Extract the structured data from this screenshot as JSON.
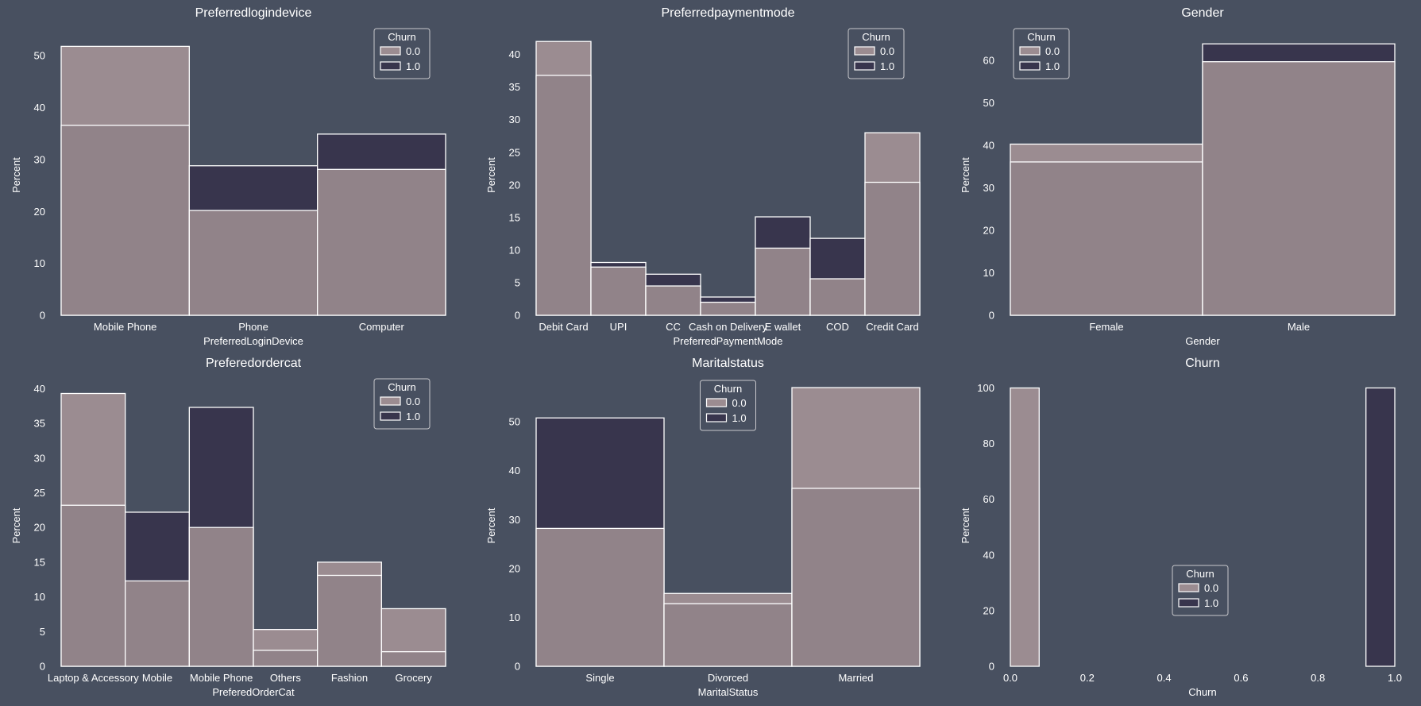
{
  "colors": {
    "background": "#485060",
    "churn0_fill": "#9b8c91",
    "churn1_fill": "#38354d",
    "overlap_fill": "#918389",
    "edge": "#ffffff"
  },
  "chart_data": [
    {
      "type": "bar",
      "title": "Preferredlogindevice",
      "xlabel": "PreferredLoginDevice",
      "ylabel": "Percent",
      "categories": [
        "Mobile Phone",
        "Phone",
        "Computer"
      ],
      "ylim": [
        0,
        54
      ],
      "yticks": [
        "0",
        "10",
        "20",
        "30",
        "40",
        "50"
      ],
      "legend_title": "Churn",
      "legend_position": "top-right",
      "series": [
        {
          "name": "0.0",
          "values": [
            51.8,
            20.2,
            28.1
          ]
        },
        {
          "name": "1.0",
          "values": [
            36.6,
            28.8,
            34.9
          ]
        }
      ]
    },
    {
      "type": "bar",
      "title": "Preferredpaymentmode",
      "xlabel": "PreferredPaymentMode",
      "ylabel": "Percent",
      "categories": [
        "Debit Card",
        "UPI",
        "CC",
        "Cash on Delivery",
        "E wallet",
        "COD",
        "Credit Card"
      ],
      "ylim": [
        0,
        43
      ],
      "yticks": [
        "0",
        "5",
        "10",
        "15",
        "20",
        "25",
        "30",
        "35",
        "40"
      ],
      "legend_title": "Churn",
      "legend_position": "top-right",
      "series": [
        {
          "name": "0.0",
          "values": [
            42.0,
            7.4,
            4.5,
            2.0,
            10.3,
            5.6,
            28.0
          ]
        },
        {
          "name": "1.0",
          "values": [
            36.8,
            8.1,
            6.3,
            2.8,
            15.1,
            11.8,
            20.4
          ]
        }
      ]
    },
    {
      "type": "bar",
      "title": "Gender",
      "xlabel": "Gender",
      "ylabel": "Percent",
      "categories": [
        "Female",
        "Male"
      ],
      "ylim": [
        0,
        66
      ],
      "yticks": [
        "0",
        "10",
        "20",
        "30",
        "40",
        "50",
        "60"
      ],
      "legend_title": "Churn",
      "legend_position": "top-left",
      "series": [
        {
          "name": "0.0",
          "values": [
            40.3,
            59.7
          ]
        },
        {
          "name": "1.0",
          "values": [
            36.1,
            63.9
          ]
        }
      ]
    },
    {
      "type": "bar",
      "title": "Preferedordercat",
      "xlabel": "PreferedOrderCat",
      "ylabel": "Percent",
      "categories": [
        "Laptop & Accessory",
        "Mobile",
        "Mobile Phone",
        "Others",
        "Fashion",
        "Grocery"
      ],
      "ylim": [
        0,
        40.5
      ],
      "yticks": [
        "0",
        "5",
        "10",
        "15",
        "20",
        "25",
        "30",
        "35",
        "40"
      ],
      "legend_title": "Churn",
      "legend_position": "top-right",
      "series": [
        {
          "name": "0.0",
          "values": [
            39.3,
            12.3,
            20.0,
            5.3,
            15.0,
            8.3
          ]
        },
        {
          "name": "1.0",
          "values": [
            23.2,
            22.2,
            37.3,
            2.3,
            13.1,
            2.1
          ]
        }
      ]
    },
    {
      "type": "bar",
      "title": "Maritalstatus",
      "xlabel": "MaritalStatus",
      "ylabel": "Percent",
      "categories": [
        "Single",
        "Divorced",
        "Married"
      ],
      "ylim": [
        0,
        57.5
      ],
      "yticks": [
        "0",
        "10",
        "20",
        "30",
        "40",
        "50"
      ],
      "legend_title": "Churn",
      "legend_position": "top-center",
      "series": [
        {
          "name": "0.0",
          "values": [
            28.2,
            14.9,
            57.0
          ]
        },
        {
          "name": "1.0",
          "values": [
            50.8,
            12.8,
            36.4
          ]
        }
      ]
    },
    {
      "type": "bar",
      "title": "Churn",
      "xlabel": "Churn",
      "ylabel": "Percent",
      "xlim": [
        0.0,
        1.0
      ],
      "xticks": [
        "0.0",
        "0.2",
        "0.4",
        "0.6",
        "0.8",
        "1.0"
      ],
      "ylim": [
        0,
        101
      ],
      "yticks": [
        "0",
        "20",
        "40",
        "60",
        "80",
        "100"
      ],
      "legend_title": "Churn",
      "legend_position": "lower-center",
      "bin_edges": [
        0.0,
        0.075,
        0.925,
        1.0
      ],
      "series": [
        {
          "name": "0.0",
          "bins": [
            {
              "x0": 0.0,
              "x1": 0.075,
              "value": 100
            }
          ]
        },
        {
          "name": "1.0",
          "bins": [
            {
              "x0": 0.925,
              "x1": 1.0,
              "value": 100
            }
          ]
        }
      ]
    }
  ]
}
